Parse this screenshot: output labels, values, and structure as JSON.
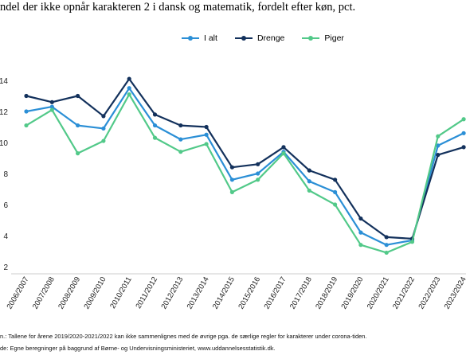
{
  "title": "ndel der ikke opnår karakteren 2 i dansk og matematik, fordelt efter køn, pct.",
  "notes": {
    "note1": "n.: Tallene for årene 2019/2020-2021/2022 kan ikke sammenlignes med de øvrige pga. de særlige regler for karakterer under corona-tiden.",
    "note2": "de: Egne beregninger på baggrund af Børne- og Undervisningsministeriet, www.uddannelsesstatistik.dk."
  },
  "colors": {
    "i_alt": "#2b8fd6",
    "drenge": "#13315c",
    "piger": "#52c989"
  },
  "chart_data": {
    "type": "line",
    "title": "ndel der ikke opnår karakteren 2 i dansk og matematik, fordelt efter køn, pct.",
    "xlabel": "",
    "ylabel": "",
    "ylim": [
      2,
      14
    ],
    "y_ticks": [
      "2",
      "4",
      "6",
      "8",
      "10",
      "12",
      "14"
    ],
    "grid": false,
    "legend": "top-center",
    "categories": [
      "2006/2007",
      "2007/2008",
      "2008/2009",
      "2009/2010",
      "2010/2011",
      "2011/2012",
      "2012/2013",
      "2013/2014",
      "2014/2015",
      "2015/2016",
      "2016/2017",
      "2017/2018",
      "2018/2019",
      "2019/2020",
      "2020/2021",
      "2021/2022",
      "2022/2023",
      "2023/2024"
    ],
    "series": [
      {
        "name": "I alt",
        "color": "#2b8fd6",
        "values": [
          12.0,
          12.3,
          11.1,
          10.9,
          13.5,
          11.1,
          10.2,
          10.5,
          7.6,
          8.0,
          9.4,
          7.5,
          6.8,
          4.2,
          3.4,
          3.7,
          9.8,
          10.6
        ]
      },
      {
        "name": "Drenge",
        "color": "#13315c",
        "values": [
          13.0,
          12.6,
          13.0,
          11.7,
          14.1,
          11.8,
          11.1,
          11.0,
          8.4,
          8.6,
          9.7,
          8.2,
          7.6,
          5.1,
          3.9,
          3.8,
          9.2,
          9.7
        ]
      },
      {
        "name": "Piger",
        "color": "#52c989",
        "values": [
          11.1,
          12.1,
          9.3,
          10.1,
          13.1,
          10.3,
          9.4,
          9.9,
          6.8,
          7.6,
          9.3,
          6.9,
          6.0,
          3.4,
          2.9,
          3.6,
          10.4,
          11.5
        ]
      }
    ]
  }
}
